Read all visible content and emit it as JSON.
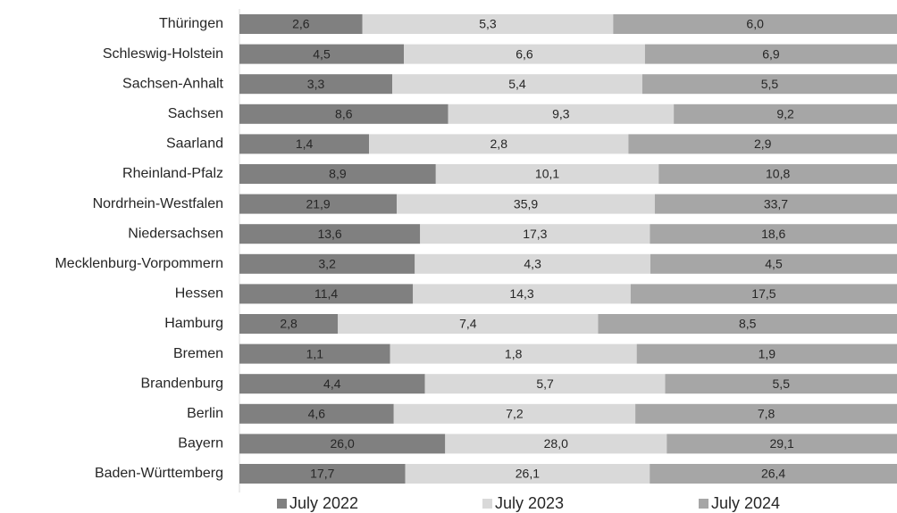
{
  "chart_data": {
    "type": "bar100h",
    "categories": [
      "Thüringen",
      "Schleswig-Holstein",
      "Sachsen-Anhalt",
      "Sachsen",
      "Saarland",
      "Rheinland-Pfalz",
      "Nordrhein-Westfalen",
      "Niedersachsen",
      "Mecklenburg-Vorpommern",
      "Hessen",
      "Hamburg",
      "Bremen",
      "Brandenburg",
      "Berlin",
      "Bayern",
      "Baden-Württemberg"
    ],
    "series": [
      {
        "name": "July 2022",
        "color": "#808080",
        "values": [
          2.6,
          4.5,
          3.3,
          8.6,
          1.4,
          8.9,
          21.9,
          13.6,
          3.2,
          11.4,
          2.8,
          1.1,
          4.4,
          4.6,
          26.0,
          17.7
        ],
        "value_labels": [
          "2,6",
          "4,5",
          "3,3",
          "8,6",
          "1,4",
          "8,9",
          "21,9",
          "13,6",
          "3,2",
          "11,4",
          "2,8",
          "1,1",
          "4,4",
          "4,6",
          "26,0",
          "17,7"
        ]
      },
      {
        "name": "July 2023",
        "color": "#d9d9d9",
        "values": [
          5.3,
          6.6,
          5.4,
          9.3,
          2.8,
          10.1,
          35.9,
          17.3,
          4.3,
          14.3,
          7.4,
          1.8,
          5.7,
          7.2,
          28.0,
          26.1
        ],
        "value_labels": [
          "5,3",
          "6,6",
          "5,4",
          "9,3",
          "2,8",
          "10,1",
          "35,9",
          "17,3",
          "4,3",
          "14,3",
          "7,4",
          "1,8",
          "5,7",
          "7,2",
          "28,0",
          "26,1"
        ]
      },
      {
        "name": "July 2024",
        "color": "#a6a6a6",
        "values": [
          6.0,
          6.9,
          5.5,
          9.2,
          2.9,
          10.8,
          33.7,
          18.6,
          4.5,
          17.5,
          8.5,
          1.9,
          5.5,
          7.8,
          29.1,
          26.4
        ],
        "value_labels": [
          "6,0",
          "6,9",
          "5,5",
          "9,2",
          "2,9",
          "10,8",
          "33,7",
          "18,6",
          "4,5",
          "17,5",
          "8,5",
          "1,9",
          "5,5",
          "7,8",
          "29,1",
          "26,4"
        ]
      }
    ],
    "legend": "bottom"
  }
}
